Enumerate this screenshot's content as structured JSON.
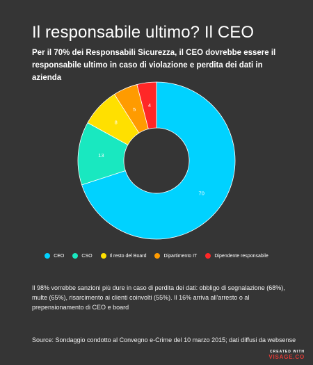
{
  "title": "Il responsabile ultimo? Il CEO",
  "subtitle": "Per il 70% dei Responsabili Sicurezza, il CEO dovrebbe essere il responsabile ultimo in caso di violazione e perdita dei dati in azienda",
  "note": "Il 98% vorrebbe sanzioni più dure in caso di perdita dei dati: obbligo di segnalazione (68%), multe (65%), risarcimento ai clienti coinvolti (55%). Il 16% arriva all'arresto o al prepensionamento di CEO e board",
  "source": "Source: Sondaggio condotto al Convegno e-Crime del 10 marzo 2015; dati diffusi da websense",
  "brand": {
    "top": "CREATED WITH",
    "bottom": "VISAGE.CO"
  },
  "chart_data": {
    "type": "pie",
    "donut": true,
    "title": "",
    "categories": [
      "CEO",
      "CSO",
      "Il resto del Board",
      "Dipartimento IT",
      "Dipendente responsabile"
    ],
    "values": [
      70,
      13,
      8,
      5,
      4
    ],
    "colors": [
      "#00d2ff",
      "#19e8c0",
      "#ffe000",
      "#ff9b00",
      "#ff2727"
    ],
    "legend": "bottom"
  }
}
